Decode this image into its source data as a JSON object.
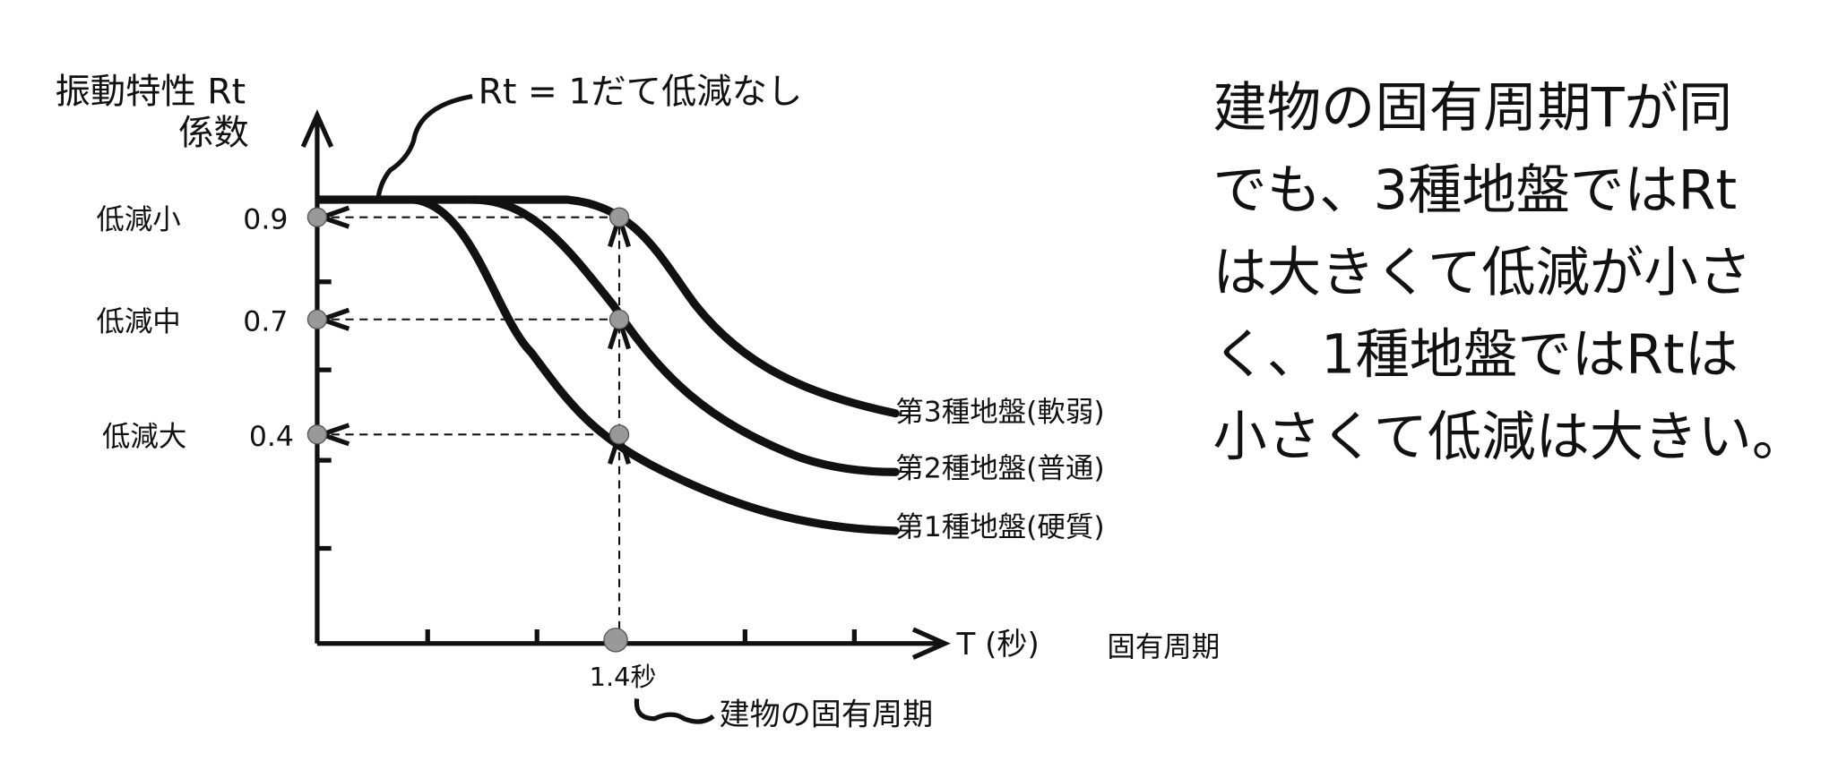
{
  "axis": {
    "y_title": [
      "振動特性 Rt",
      "係数"
    ],
    "x_title": "T (秒)",
    "x_note": "固有周期"
  },
  "annotations": {
    "flat": "Rt = 1だて低減なし",
    "period": "建物の固有周期",
    "period_value": "1.4秒"
  },
  "levels": [
    {
      "label": "低減小",
      "value": 0.9
    },
    {
      "label": "低減中",
      "value": 0.7
    },
    {
      "label": "低減大",
      "value": 0.4
    }
  ],
  "curves": [
    "第3種地盤(軟弱)",
    "第2種地盤(普通)",
    "第1種地盤(硬質)"
  ],
  "explanation": [
    "建物の固有周期Tが同",
    "でも、3種地盤ではRt",
    "は大きくて低減が小さ",
    "く、1種地盤ではRtは",
    "小さくて低減は大きい。"
  ]
}
